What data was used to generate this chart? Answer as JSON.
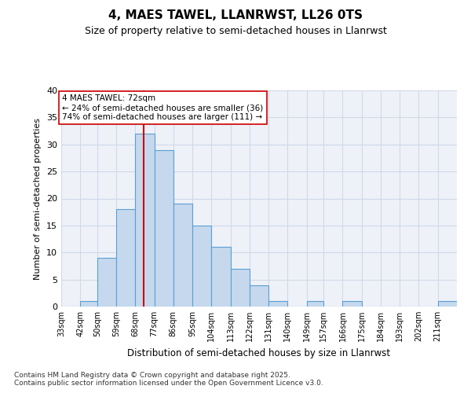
{
  "title": "4, MAES TAWEL, LLANRWST, LL26 0TS",
  "subtitle": "Size of property relative to semi-detached houses in Llanrwst",
  "xlabel": "Distribution of semi-detached houses by size in Llanrwst",
  "ylabel": "Number of semi-detached properties",
  "bin_labels": [
    "33sqm",
    "42sqm",
    "50sqm",
    "59sqm",
    "68sqm",
    "77sqm",
    "86sqm",
    "95sqm",
    "104sqm",
    "113sqm",
    "122sqm",
    "131sqm",
    "140sqm",
    "149sqm",
    "157sqm",
    "166sqm",
    "175sqm",
    "184sqm",
    "193sqm",
    "202sqm",
    "211sqm"
  ],
  "bin_edges": [
    33,
    42,
    50,
    59,
    68,
    77,
    86,
    95,
    104,
    113,
    122,
    131,
    140,
    149,
    157,
    166,
    175,
    184,
    193,
    202,
    211,
    220
  ],
  "bar_values": [
    0,
    1,
    9,
    18,
    32,
    29,
    19,
    15,
    11,
    7,
    4,
    1,
    0,
    1,
    0,
    1,
    0,
    0,
    0,
    0,
    1
  ],
  "bar_color": "#c5d8ed",
  "bar_edge_color": "#5a9fd4",
  "property_size": 72,
  "property_label": "4 MAES TAWEL: 72sqm",
  "pct_smaller": 24,
  "pct_larger": 74,
  "n_smaller": 36,
  "n_larger": 111,
  "vline_color": "#cc0000",
  "annotation_box_color": "#cc0000",
  "grid_color": "#d0d8e8",
  "background_color": "#eef2f8",
  "ylim": [
    0,
    40
  ],
  "yticks": [
    0,
    5,
    10,
    15,
    20,
    25,
    30,
    35,
    40
  ],
  "footer_text": "Contains HM Land Registry data © Crown copyright and database right 2025.\nContains public sector information licensed under the Open Government Licence v3.0."
}
